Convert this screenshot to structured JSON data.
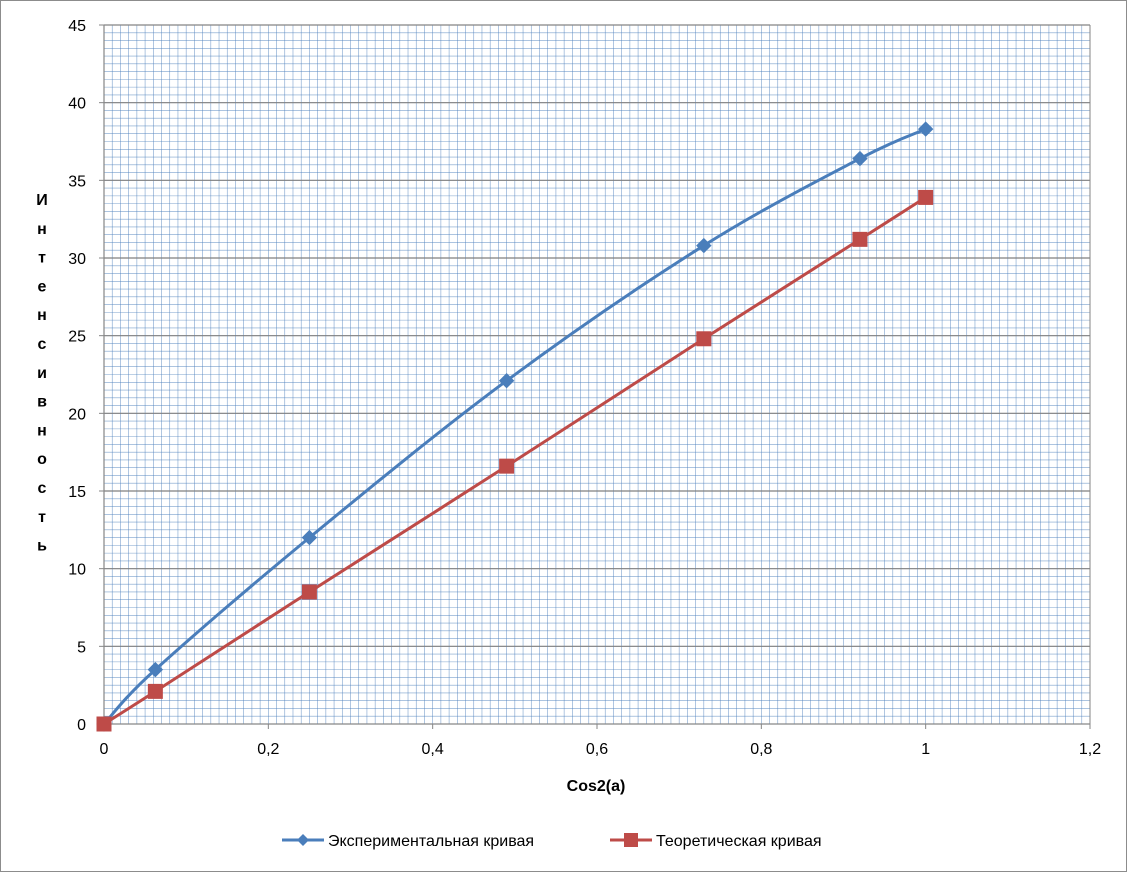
{
  "chart_data": {
    "type": "line",
    "xlabel": "Cos2(a)",
    "ylabel": "Интенсивность",
    "xlim": [
      0,
      1.2
    ],
    "ylim": [
      0,
      45
    ],
    "x_ticks": [
      "0",
      "0,2",
      "0,4",
      "0,6",
      "0,8",
      "1",
      "1,2"
    ],
    "y_ticks": [
      "0",
      "5",
      "10",
      "15",
      "20",
      "25",
      "30",
      "35",
      "40",
      "45"
    ],
    "grid": true,
    "legend_position": "bottom",
    "series": [
      {
        "name": "Экспериментальная кривая",
        "color": "#4a7ebb",
        "marker": "diamond",
        "x": [
          0,
          0.0625,
          0.25,
          0.49,
          0.73,
          0.92,
          1
        ],
        "y": [
          0,
          3.5,
          12,
          22.1,
          30.8,
          36.4,
          38.3
        ]
      },
      {
        "name": "Теоретическая кривая",
        "color": "#be4b48",
        "marker": "square",
        "x": [
          0,
          0.0625,
          0.25,
          0.49,
          0.73,
          0.92,
          1
        ],
        "y": [
          0,
          2.1,
          8.5,
          16.6,
          24.8,
          31.2,
          33.9
        ]
      }
    ]
  }
}
